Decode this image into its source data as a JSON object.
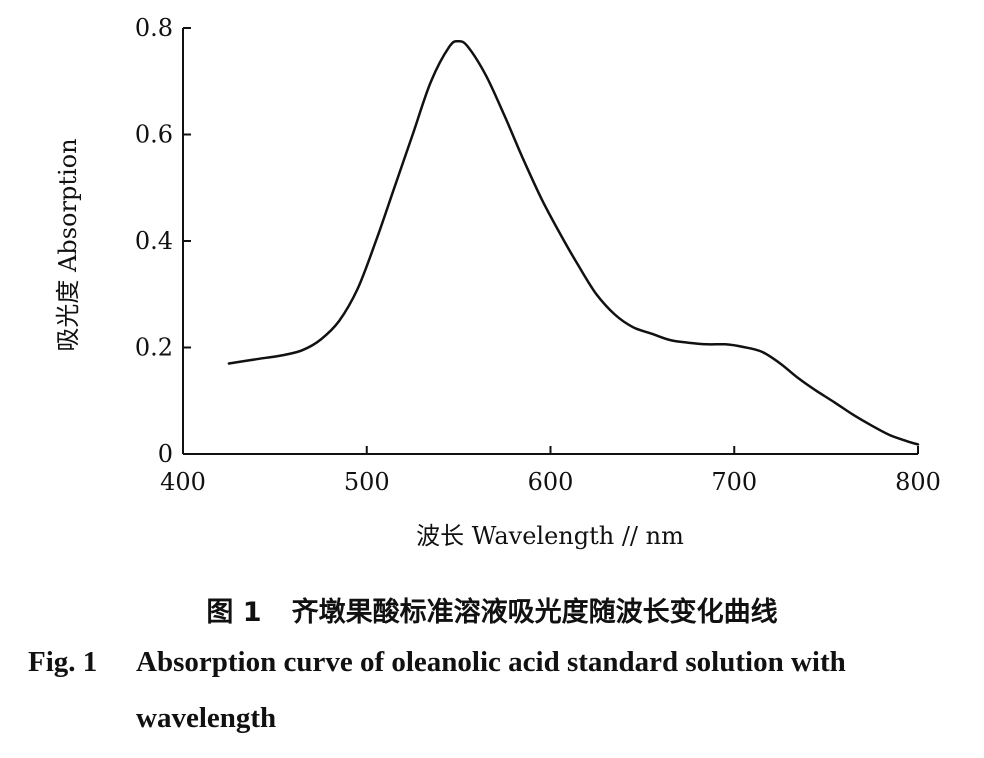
{
  "chart_data": {
    "type": "line",
    "xlabel": "波长 Wavelength // nm",
    "ylabel": "吸光度 Absorption",
    "xlim": [
      400,
      800
    ],
    "ylim": [
      0,
      0.8
    ],
    "x_ticks": [
      "400",
      "500",
      "600",
      "700",
      "800"
    ],
    "y_ticks": [
      "0",
      "0.2",
      "0.4",
      "0.6",
      "0.8"
    ],
    "grid": false,
    "series": [
      {
        "x": [
          425,
          440,
          455,
          465,
          475,
          485,
          495,
          505,
          515,
          525,
          535,
          545,
          550,
          555,
          565,
          575,
          585,
          595,
          605,
          615,
          625,
          635,
          645,
          655,
          665,
          675,
          685,
          695,
          705,
          715,
          725,
          735,
          745,
          755,
          765,
          775,
          785,
          795,
          800
        ],
        "y": [
          0.17,
          0.178,
          0.186,
          0.195,
          0.215,
          0.25,
          0.31,
          0.4,
          0.5,
          0.6,
          0.7,
          0.765,
          0.775,
          0.765,
          0.71,
          0.635,
          0.555,
          0.48,
          0.415,
          0.355,
          0.3,
          0.262,
          0.238,
          0.226,
          0.214,
          0.209,
          0.206,
          0.206,
          0.201,
          0.192,
          0.17,
          0.142,
          0.118,
          0.096,
          0.073,
          0.053,
          0.035,
          0.023,
          0.018
        ]
      }
    ]
  },
  "caption": {
    "cn_fig": "图 1",
    "cn_text": "齐墩果酸标准溶液吸光度随波长变化曲线",
    "en_fig": "Fig. 1",
    "en_text_line1": "Absorption curve of oleanolic acid standard solution with",
    "en_text_line2": "wavelength"
  }
}
